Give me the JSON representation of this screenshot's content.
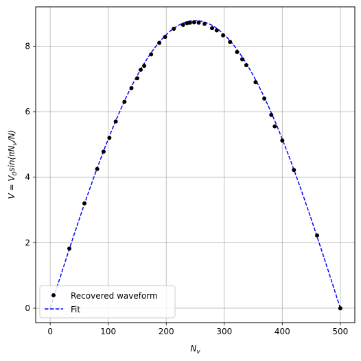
{
  "chart_data": {
    "type": "scatter",
    "xlabel": "N_v",
    "ylabel": "V = V_0 sin(πN_v/N)",
    "xlim": [
      -25,
      525
    ],
    "ylim": [
      -0.44,
      9.2
    ],
    "xticks": [
      0,
      100,
      200,
      300,
      400,
      500
    ],
    "yticks": [
      0,
      2,
      4,
      6,
      8
    ],
    "grid": true,
    "legend_position": "lower-left",
    "series": [
      {
        "name": "Recovered waveform",
        "style": "markers",
        "color": "#000000",
        "x": [
          33,
          59,
          81,
          92,
          102,
          113,
          128,
          140,
          150,
          156,
          162,
          174,
          188,
          198,
          213,
          229,
          236,
          241,
          248,
          256,
          266,
          279,
          287,
          298,
          310,
          322,
          331,
          338,
          354,
          369,
          381,
          387,
          400,
          420,
          460,
          500
        ],
        "y": [
          1.82,
          3.2,
          4.25,
          4.78,
          5.2,
          5.7,
          6.3,
          6.72,
          7.02,
          7.28,
          7.4,
          7.75,
          8.1,
          8.28,
          8.53,
          8.65,
          8.7,
          8.72,
          8.73,
          8.72,
          8.68,
          8.55,
          8.48,
          8.33,
          8.13,
          7.82,
          7.6,
          7.42,
          6.9,
          6.4,
          5.9,
          5.55,
          5.12,
          4.22,
          2.22,
          0.0
        ]
      },
      {
        "name": "Fit",
        "style": "dashed-line",
        "color": "#0000ff",
        "function": "sine",
        "amplitude": 8.78,
        "period_N": 500
      }
    ]
  }
}
